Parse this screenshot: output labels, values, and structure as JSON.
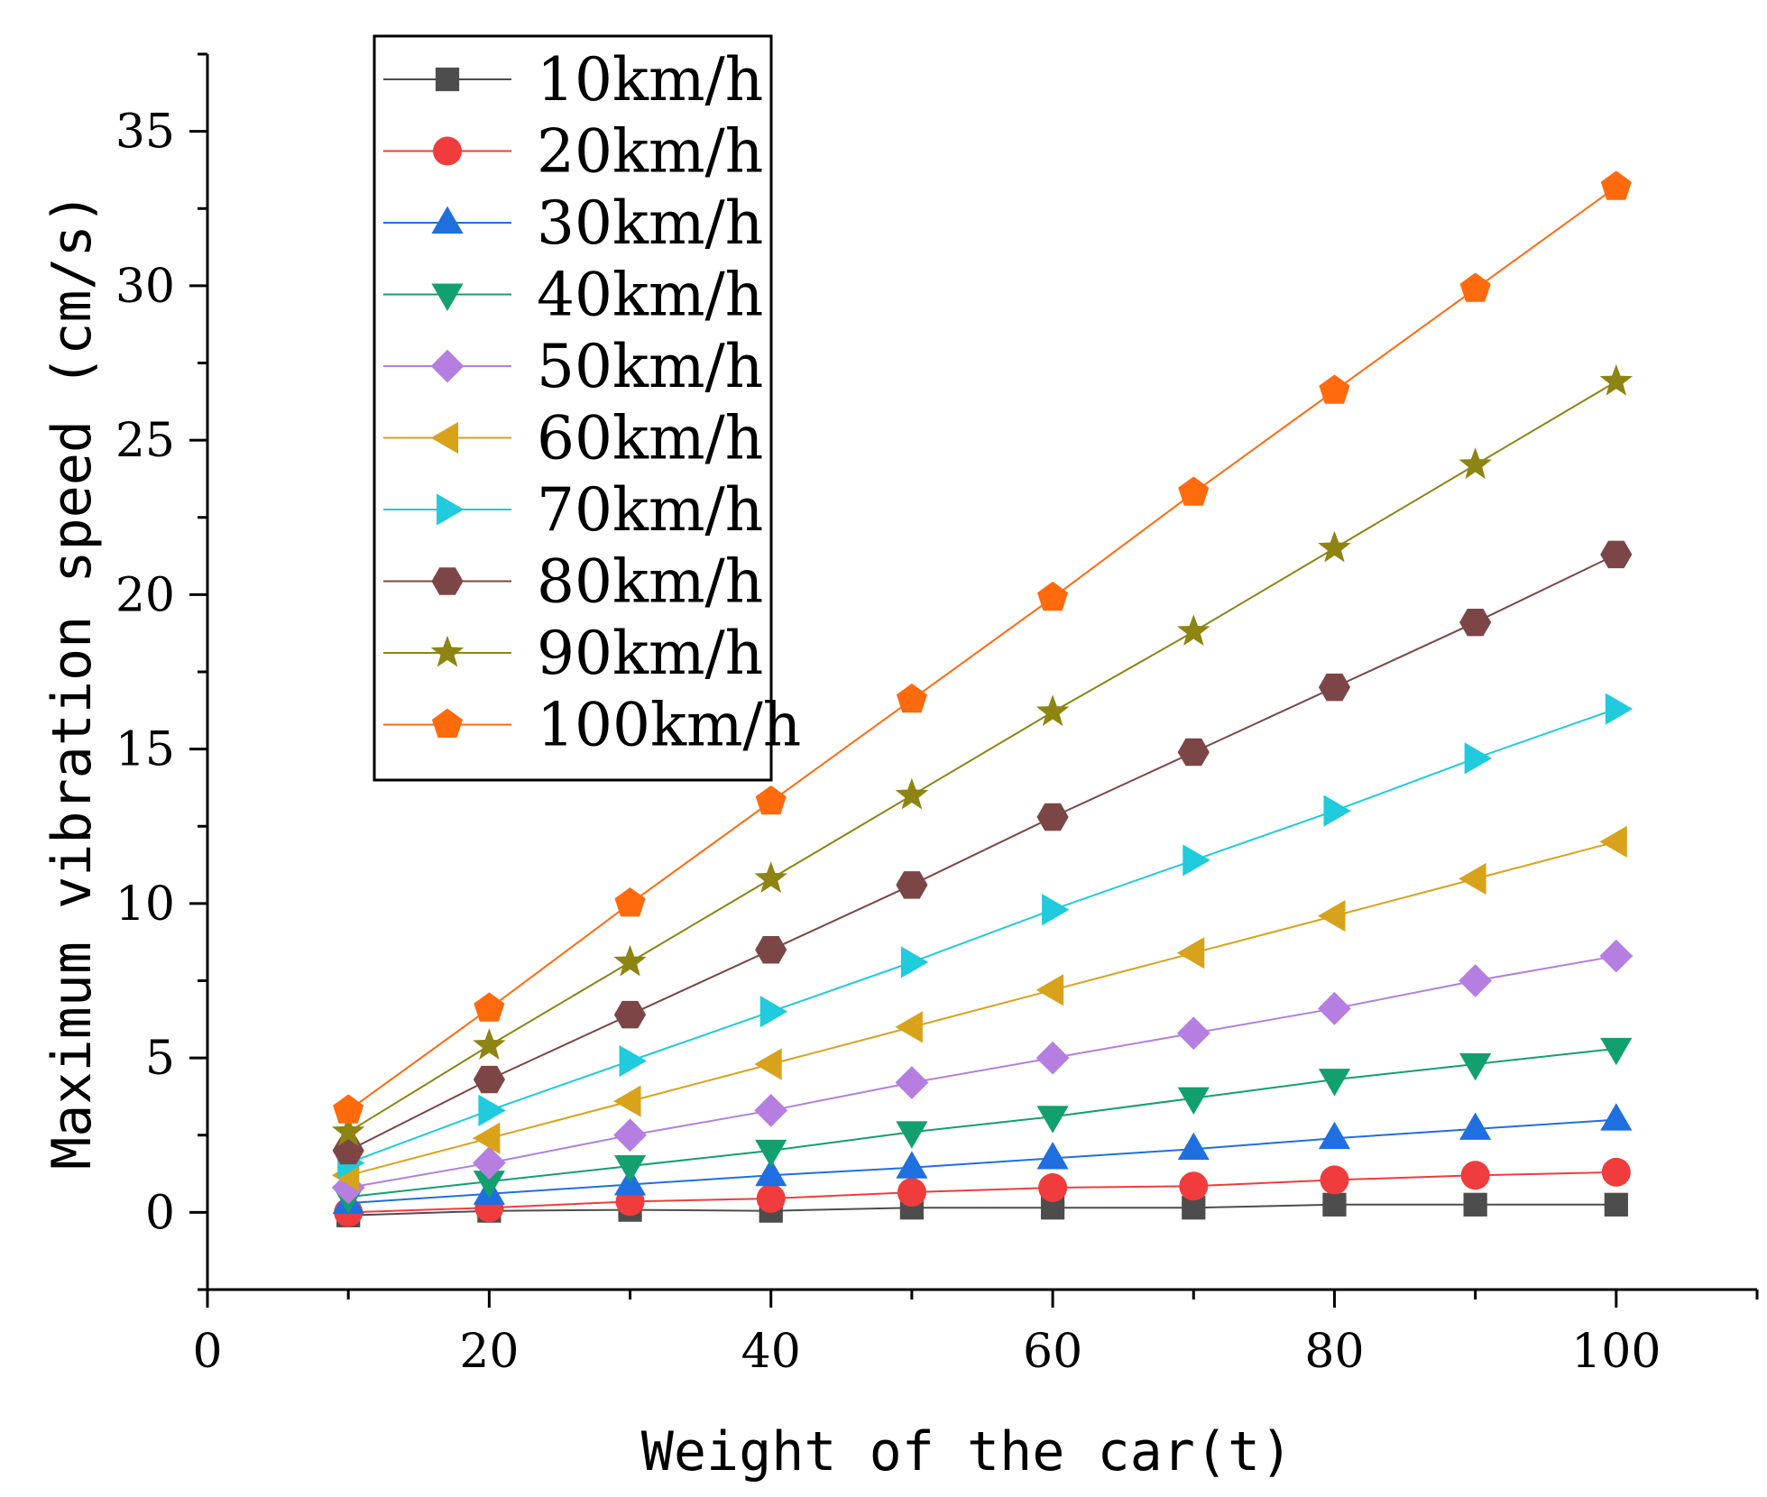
{
  "chart_data": {
    "type": "line",
    "xlabel": "Weight of the car(t)",
    "ylabel": "Maximum vibration speed (cm/s)",
    "xlim": [
      0,
      110
    ],
    "ylim": [
      -2.5,
      37.5
    ],
    "x_ticks": [
      0,
      20,
      40,
      60,
      80,
      100
    ],
    "y_ticks": [
      0,
      5,
      10,
      15,
      20,
      25,
      30,
      35
    ],
    "grid": false,
    "legend_position": "top-left",
    "x": [
      10,
      20,
      30,
      40,
      50,
      60,
      70,
      80,
      90,
      100
    ],
    "series": [
      {
        "name": "10km/h",
        "color": "#4d4d4d",
        "marker": "square",
        "values": [
          -0.1,
          0.05,
          0.08,
          0.05,
          0.15,
          0.15,
          0.15,
          0.25,
          0.25,
          0.25
        ]
      },
      {
        "name": "20km/h",
        "color": "#f03c3c",
        "marker": "circle",
        "values": [
          0.0,
          0.15,
          0.35,
          0.45,
          0.65,
          0.8,
          0.85,
          1.05,
          1.2,
          1.3
        ]
      },
      {
        "name": "30km/h",
        "color": "#1f6fe0",
        "marker": "triangle-up",
        "values": [
          0.3,
          0.6,
          0.9,
          1.2,
          1.45,
          1.75,
          2.05,
          2.4,
          2.7,
          3.0
        ]
      },
      {
        "name": "40km/h",
        "color": "#11a06e",
        "marker": "triangle-down",
        "values": [
          0.5,
          1.0,
          1.5,
          2.0,
          2.6,
          3.1,
          3.7,
          4.3,
          4.8,
          5.3
        ]
      },
      {
        "name": "50km/h",
        "color": "#b57ee0",
        "marker": "diamond",
        "values": [
          0.8,
          1.6,
          2.5,
          3.3,
          4.2,
          5.0,
          5.8,
          6.6,
          7.5,
          8.3
        ]
      },
      {
        "name": "60km/h",
        "color": "#d9a21b",
        "marker": "triangle-left",
        "values": [
          1.2,
          2.4,
          3.6,
          4.8,
          6.0,
          7.2,
          8.4,
          9.6,
          10.8,
          12.0
        ]
      },
      {
        "name": "70km/h",
        "color": "#1fcbdc",
        "marker": "triangle-right",
        "values": [
          1.6,
          3.3,
          4.9,
          6.5,
          8.1,
          9.8,
          11.4,
          13.0,
          14.7,
          16.3
        ]
      },
      {
        "name": "80km/h",
        "color": "#7d4646",
        "marker": "hexagon",
        "values": [
          2.0,
          4.3,
          6.4,
          8.5,
          10.6,
          12.8,
          14.9,
          17.0,
          19.1,
          21.3
        ]
      },
      {
        "name": "90km/h",
        "color": "#8e8412",
        "marker": "star",
        "values": [
          2.6,
          5.4,
          8.1,
          10.8,
          13.5,
          16.2,
          18.8,
          21.5,
          24.2,
          26.9
        ]
      },
      {
        "name": "100km/h",
        "color": "#ff6a0d",
        "marker": "pentagon",
        "values": [
          3.3,
          6.6,
          10.0,
          13.3,
          16.6,
          19.9,
          23.3,
          26.6,
          29.9,
          33.2
        ]
      }
    ]
  }
}
